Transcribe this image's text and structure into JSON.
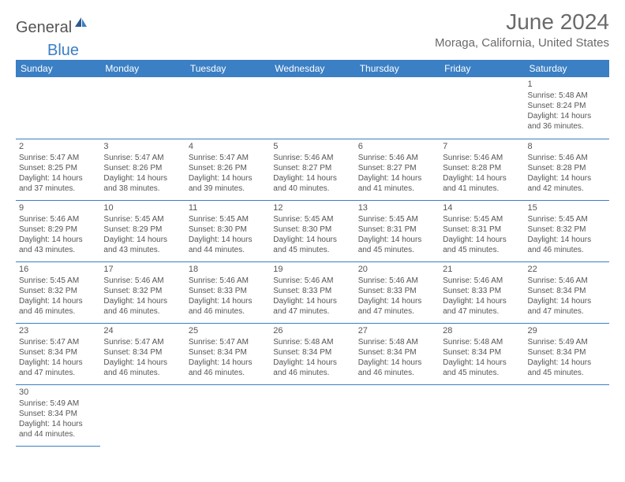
{
  "logo": {
    "general": "General",
    "blue": "Blue"
  },
  "title": "June 2024",
  "location": "Moraga, California, United States",
  "weekdays": [
    "Sunday",
    "Monday",
    "Tuesday",
    "Wednesday",
    "Thursday",
    "Friday",
    "Saturday"
  ],
  "colors": {
    "header_bg": "#3b7fc4",
    "text": "#555555",
    "border": "#3b7fc4"
  },
  "weeks": [
    [
      null,
      null,
      null,
      null,
      null,
      null,
      {
        "d": "1",
        "sr": "5:48 AM",
        "ss": "8:24 PM",
        "dl": "14 hours and 36 minutes."
      }
    ],
    [
      {
        "d": "2",
        "sr": "5:47 AM",
        "ss": "8:25 PM",
        "dl": "14 hours and 37 minutes."
      },
      {
        "d": "3",
        "sr": "5:47 AM",
        "ss": "8:26 PM",
        "dl": "14 hours and 38 minutes."
      },
      {
        "d": "4",
        "sr": "5:47 AM",
        "ss": "8:26 PM",
        "dl": "14 hours and 39 minutes."
      },
      {
        "d": "5",
        "sr": "5:46 AM",
        "ss": "8:27 PM",
        "dl": "14 hours and 40 minutes."
      },
      {
        "d": "6",
        "sr": "5:46 AM",
        "ss": "8:27 PM",
        "dl": "14 hours and 41 minutes."
      },
      {
        "d": "7",
        "sr": "5:46 AM",
        "ss": "8:28 PM",
        "dl": "14 hours and 41 minutes."
      },
      {
        "d": "8",
        "sr": "5:46 AM",
        "ss": "8:28 PM",
        "dl": "14 hours and 42 minutes."
      }
    ],
    [
      {
        "d": "9",
        "sr": "5:46 AM",
        "ss": "8:29 PM",
        "dl": "14 hours and 43 minutes."
      },
      {
        "d": "10",
        "sr": "5:45 AM",
        "ss": "8:29 PM",
        "dl": "14 hours and 43 minutes."
      },
      {
        "d": "11",
        "sr": "5:45 AM",
        "ss": "8:30 PM",
        "dl": "14 hours and 44 minutes."
      },
      {
        "d": "12",
        "sr": "5:45 AM",
        "ss": "8:30 PM",
        "dl": "14 hours and 45 minutes."
      },
      {
        "d": "13",
        "sr": "5:45 AM",
        "ss": "8:31 PM",
        "dl": "14 hours and 45 minutes."
      },
      {
        "d": "14",
        "sr": "5:45 AM",
        "ss": "8:31 PM",
        "dl": "14 hours and 45 minutes."
      },
      {
        "d": "15",
        "sr": "5:45 AM",
        "ss": "8:32 PM",
        "dl": "14 hours and 46 minutes."
      }
    ],
    [
      {
        "d": "16",
        "sr": "5:45 AM",
        "ss": "8:32 PM",
        "dl": "14 hours and 46 minutes."
      },
      {
        "d": "17",
        "sr": "5:46 AM",
        "ss": "8:32 PM",
        "dl": "14 hours and 46 minutes."
      },
      {
        "d": "18",
        "sr": "5:46 AM",
        "ss": "8:33 PM",
        "dl": "14 hours and 46 minutes."
      },
      {
        "d": "19",
        "sr": "5:46 AM",
        "ss": "8:33 PM",
        "dl": "14 hours and 47 minutes."
      },
      {
        "d": "20",
        "sr": "5:46 AM",
        "ss": "8:33 PM",
        "dl": "14 hours and 47 minutes."
      },
      {
        "d": "21",
        "sr": "5:46 AM",
        "ss": "8:33 PM",
        "dl": "14 hours and 47 minutes."
      },
      {
        "d": "22",
        "sr": "5:46 AM",
        "ss": "8:34 PM",
        "dl": "14 hours and 47 minutes."
      }
    ],
    [
      {
        "d": "23",
        "sr": "5:47 AM",
        "ss": "8:34 PM",
        "dl": "14 hours and 47 minutes."
      },
      {
        "d": "24",
        "sr": "5:47 AM",
        "ss": "8:34 PM",
        "dl": "14 hours and 46 minutes."
      },
      {
        "d": "25",
        "sr": "5:47 AM",
        "ss": "8:34 PM",
        "dl": "14 hours and 46 minutes."
      },
      {
        "d": "26",
        "sr": "5:48 AM",
        "ss": "8:34 PM",
        "dl": "14 hours and 46 minutes."
      },
      {
        "d": "27",
        "sr": "5:48 AM",
        "ss": "8:34 PM",
        "dl": "14 hours and 46 minutes."
      },
      {
        "d": "28",
        "sr": "5:48 AM",
        "ss": "8:34 PM",
        "dl": "14 hours and 45 minutes."
      },
      {
        "d": "29",
        "sr": "5:49 AM",
        "ss": "8:34 PM",
        "dl": "14 hours and 45 minutes."
      }
    ],
    [
      {
        "d": "30",
        "sr": "5:49 AM",
        "ss": "8:34 PM",
        "dl": "14 hours and 44 minutes."
      },
      null,
      null,
      null,
      null,
      null,
      null
    ]
  ],
  "labels": {
    "sunrise": "Sunrise:",
    "sunset": "Sunset:",
    "daylight": "Daylight:"
  }
}
